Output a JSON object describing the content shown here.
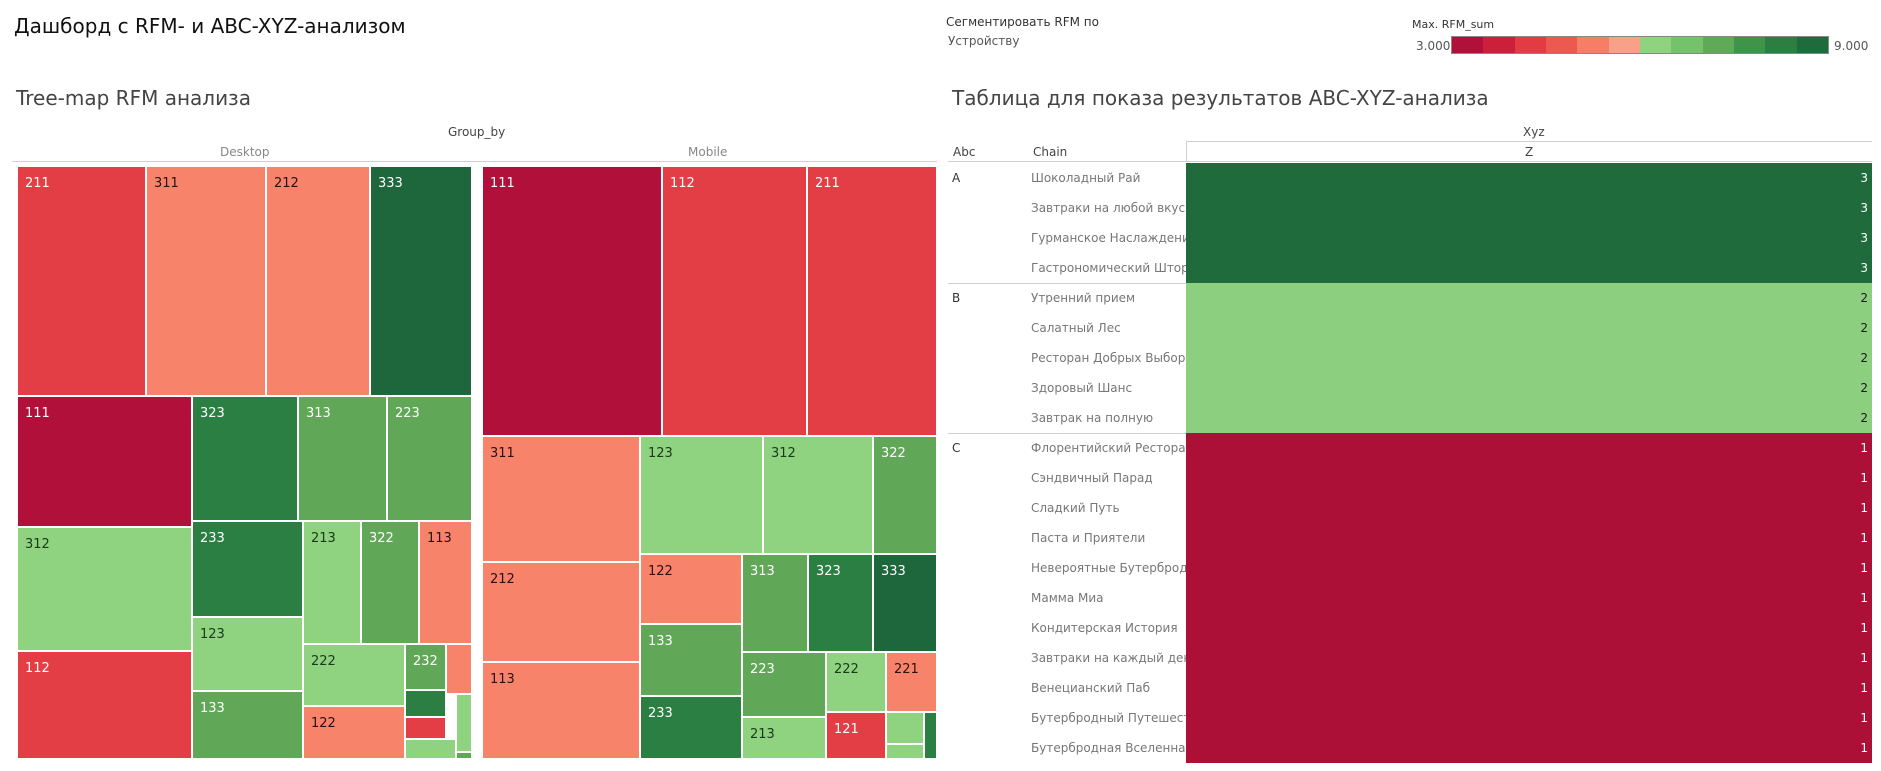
{
  "dashboard_title": "Дашборд с RFM- и ABC-XYZ-анализом",
  "filter": {
    "label": "Сегментировать RFM по",
    "value": "Устройству"
  },
  "legend": {
    "title": "Max. RFM_sum",
    "min_label": "3.000",
    "max_label": "9.000",
    "colors": [
      "#b01039",
      "#cc1f3a",
      "#e23b43",
      "#ec5950",
      "#f77e66",
      "#f9a088",
      "#8fd27f",
      "#74c26b",
      "#5faa58",
      "#3f944a",
      "#2d7f41",
      "#1f6b3c"
    ]
  },
  "treemap": {
    "title": "Tree-map RFM анализа",
    "group_header": "Group_by",
    "panels": [
      {
        "name": "Desktop",
        "cells": [
          {
            "label": "211",
            "rfm": 4
          },
          {
            "label": "311",
            "rfm": 5
          },
          {
            "label": "212",
            "rfm": 5
          },
          {
            "label": "333",
            "rfm": 9
          },
          {
            "label": "111",
            "rfm": 3
          },
          {
            "label": "323",
            "rfm": 8
          },
          {
            "label": "313",
            "rfm": 7
          },
          {
            "label": "223",
            "rfm": 7
          },
          {
            "label": "312",
            "rfm": 6
          },
          {
            "label": "233",
            "rfm": 8
          },
          {
            "label": "213",
            "rfm": 6
          },
          {
            "label": "322",
            "rfm": 7
          },
          {
            "label": "113",
            "rfm": 5
          },
          {
            "label": "123",
            "rfm": 6
          },
          {
            "label": "222",
            "rfm": 6
          },
          {
            "label": "232",
            "rfm": 7
          },
          {
            "label": "112",
            "rfm": 4
          },
          {
            "label": "133",
            "rfm": 7
          },
          {
            "label": "122",
            "rfm": 5
          },
          {
            "label": "",
            "rfm": 5
          },
          {
            "label": "",
            "rfm": 8
          },
          {
            "label": "",
            "rfm": 4
          },
          {
            "label": "",
            "rfm": 6
          },
          {
            "label": "",
            "rfm": 6
          },
          {
            "label": "",
            "rfm": 7
          }
        ]
      },
      {
        "name": "Mobile",
        "cells": [
          {
            "label": "111",
            "rfm": 3
          },
          {
            "label": "112",
            "rfm": 4
          },
          {
            "label": "211",
            "rfm": 4
          },
          {
            "label": "311",
            "rfm": 5
          },
          {
            "label": "123",
            "rfm": 6
          },
          {
            "label": "312",
            "rfm": 6
          },
          {
            "label": "322",
            "rfm": 7
          },
          {
            "label": "212",
            "rfm": 5
          },
          {
            "label": "122",
            "rfm": 5
          },
          {
            "label": "313",
            "rfm": 7
          },
          {
            "label": "323",
            "rfm": 8
          },
          {
            "label": "333",
            "rfm": 9
          },
          {
            "label": "113",
            "rfm": 5
          },
          {
            "label": "133",
            "rfm": 7
          },
          {
            "label": "223",
            "rfm": 7
          },
          {
            "label": "222",
            "rfm": 6
          },
          {
            "label": "221",
            "rfm": 5
          },
          {
            "label": "233",
            "rfm": 8
          },
          {
            "label": "213",
            "rfm": 6
          },
          {
            "label": "121",
            "rfm": 4
          },
          {
            "label": "",
            "rfm": 6
          },
          {
            "label": "",
            "rfm": 6
          },
          {
            "label": "",
            "rfm": 8
          }
        ]
      }
    ]
  },
  "table": {
    "title": "Таблица для показа результатов ABC-XYZ-анализа",
    "xyz_header": "Xyz",
    "col_abc": "Abc",
    "col_chain": "Chain",
    "col_z": "Z",
    "groups": [
      {
        "abc": "A",
        "color": "#1f6b3c",
        "rows": [
          {
            "chain": "Шоколадный Рай",
            "value": "3"
          },
          {
            "chain": "Завтраки на любой вкус",
            "value": "3"
          },
          {
            "chain": "Гурманское Наслаждение",
            "value": "3"
          },
          {
            "chain": "Гастрономический Шторм",
            "value": "3"
          }
        ]
      },
      {
        "abc": "B",
        "color": "#8ccf7e",
        "rows": [
          {
            "chain": "Утренний прием",
            "value": "2"
          },
          {
            "chain": "Салатный Лес",
            "value": "2"
          },
          {
            "chain": "Ресторан Добрых Выбор..",
            "value": "2"
          },
          {
            "chain": "Здоровый Шанс",
            "value": "2"
          },
          {
            "chain": "Завтрак на полную",
            "value": "2"
          }
        ]
      },
      {
        "abc": "C",
        "color": "#ad1036",
        "rows": [
          {
            "chain": "Флорентийский Ресторан",
            "value": "1"
          },
          {
            "chain": "Сэндвичный Парад",
            "value": "1"
          },
          {
            "chain": "Сладкий Путь",
            "value": "1"
          },
          {
            "chain": "Паста и Приятели",
            "value": "1"
          },
          {
            "chain": "Невероятные Бутерброды",
            "value": "1"
          },
          {
            "chain": "Мамма Миа",
            "value": "1"
          },
          {
            "chain": "Кондитерская История",
            "value": "1"
          },
          {
            "chain": "Завтраки на каждый день",
            "value": "1"
          },
          {
            "chain": "Венецианский Паб",
            "value": "1"
          },
          {
            "chain": "Бутербродный Путешест..",
            "value": "1"
          },
          {
            "chain": "Бутербродная Вселенная",
            "value": "1"
          }
        ]
      }
    ]
  },
  "chart_data": [
    {
      "type": "heatmap",
      "title": "Tree-map RFM анализа",
      "facet": "Group_by",
      "facets": [
        "Desktop",
        "Mobile"
      ],
      "color_measure": "Max. RFM_sum",
      "color_range": [
        3,
        9
      ]
    },
    {
      "type": "table",
      "title": "Таблица для показа результатов ABC-XYZ-анализа",
      "columns": [
        "Abc",
        "Chain",
        "Z"
      ],
      "rows": [
        [
          "A",
          "Шоколадный Рай",
          3
        ],
        [
          "A",
          "Завтраки на любой вкус",
          3
        ],
        [
          "A",
          "Гурманское Наслаждение",
          3
        ],
        [
          "A",
          "Гастрономический Шторм",
          3
        ],
        [
          "B",
          "Утренний прием",
          2
        ],
        [
          "B",
          "Салатный Лес",
          2
        ],
        [
          "B",
          "Ресторан Добрых Выбор..",
          2
        ],
        [
          "B",
          "Здоровый Шанс",
          2
        ],
        [
          "B",
          "Завтрак на полную",
          2
        ],
        [
          "C",
          "Флорентийский Ресторан",
          1
        ],
        [
          "C",
          "Сэндвичный Парад",
          1
        ],
        [
          "C",
          "Сладкий Путь",
          1
        ],
        [
          "C",
          "Паста и Приятели",
          1
        ],
        [
          "C",
          "Невероятные Бутерброды",
          1
        ],
        [
          "C",
          "Мамма Миа",
          1
        ],
        [
          "C",
          "Кондитерская История",
          1
        ],
        [
          "C",
          "Завтраки на каждый день",
          1
        ],
        [
          "C",
          "Венецианский Паб",
          1
        ],
        [
          "C",
          "Бутербродный Путешест..",
          1
        ],
        [
          "C",
          "Бутербродная Вселенная",
          1
        ]
      ]
    }
  ]
}
